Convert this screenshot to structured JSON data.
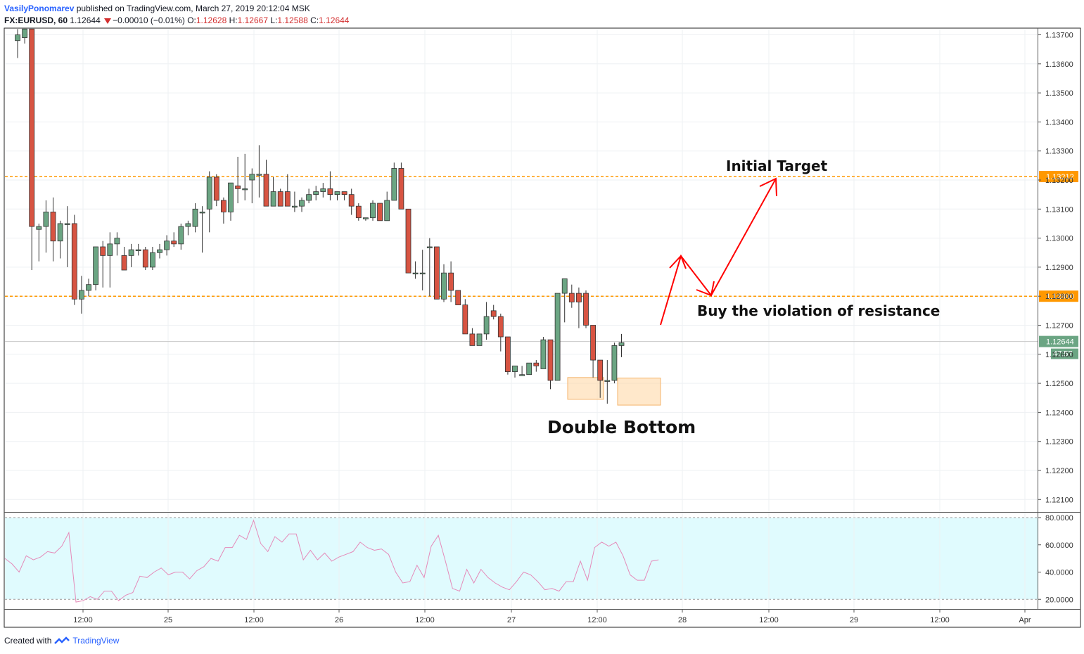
{
  "header": {
    "author": "VasilyPonomarev",
    "published_text": "published on TradingView.com, March 27, 2019 20:12:04 MSK",
    "symbol": "FX:EURUSD, 60",
    "last": "1.12644",
    "change": "−0.00010 (−0.01%)",
    "o_label": "O:",
    "o_value": "1.12628",
    "h_label": "H:",
    "h_value": "1.12667",
    "l_label": "L:",
    "l_value": "1.12588",
    "c_label": "C:",
    "c_value": "1.12644"
  },
  "footer": {
    "created_with": "Created with",
    "brand": "TradingView"
  },
  "colors": {
    "up": "#6ba583",
    "down": "#d75442",
    "orange": "#ff9800",
    "red_arrow": "#ff0000",
    "rsi_line": "#e58ab9",
    "rsi_band": "#e0fbfe"
  },
  "chart_data": [
    {
      "type": "candlestick",
      "symbol": "FX:EURUSD",
      "interval": "60",
      "y_ticks": [
        "1.13700",
        "1.13600",
        "1.13500",
        "1.13400",
        "1.13300",
        "1.13200",
        "1.13100",
        "1.13000",
        "1.12900",
        "1.12800",
        "1.12700",
        "1.12600",
        "1.12500",
        "1.12400",
        "1.12300",
        "1.12200",
        "1.12100"
      ],
      "ylim": [
        1.1207,
        1.1375
      ],
      "x_ticks": [
        "12:00",
        "25",
        "12:00",
        "26",
        "12:00",
        "27",
        "12:00",
        "28",
        "12:00",
        "29",
        "12:00",
        "Apr"
      ],
      "price_labels": {
        "initial_target": "1.13212",
        "resistance": "1.12800",
        "last_price": "1.12644",
        "countdown": "47:57"
      },
      "horizontal_lines": [
        1.13212,
        1.128
      ],
      "annotations": {
        "initial_target": "Initial Target",
        "buy_text": "Buy the violation of resistance",
        "pattern": "Double Bottom"
      },
      "candles": [
        [
          1.1368,
          1.1372,
          1.1362,
          1.137
        ],
        [
          1.1369,
          1.1374,
          1.1367,
          1.1372
        ],
        [
          1.1372,
          1.1375,
          1.1289,
          1.1304
        ],
        [
          1.1303,
          1.1305,
          1.1292,
          1.1304
        ],
        [
          1.1304,
          1.1313,
          1.1295,
          1.1309
        ],
        [
          1.1309,
          1.1314,
          1.1292,
          1.1299
        ],
        [
          1.1299,
          1.1306,
          1.1293,
          1.1305
        ],
        [
          1.1305,
          1.1311,
          1.129,
          1.1305
        ],
        [
          1.1305,
          1.1308,
          1.1277,
          1.1279
        ],
        [
          1.1279,
          1.1287,
          1.1274,
          1.1282
        ],
        [
          1.1282,
          1.1286,
          1.128,
          1.1284
        ],
        [
          1.1284,
          1.1297,
          1.1282,
          1.1297
        ],
        [
          1.1297,
          1.1299,
          1.1283,
          1.1294
        ],
        [
          1.1294,
          1.1302,
          1.1283,
          1.1298
        ],
        [
          1.1298,
          1.1302,
          1.1294,
          1.13
        ],
        [
          1.1294,
          1.1297,
          1.1289,
          1.1289
        ],
        [
          1.1294,
          1.1298,
          1.129,
          1.1296
        ],
        [
          1.1296,
          1.1298,
          1.1294,
          1.1296
        ],
        [
          1.1296,
          1.1297,
          1.1289,
          1.129
        ],
        [
          1.129,
          1.1297,
          1.1289,
          1.1295
        ],
        [
          1.1295,
          1.1298,
          1.1293,
          1.1296
        ],
        [
          1.1296,
          1.1301,
          1.1294,
          1.1299
        ],
        [
          1.1299,
          1.1302,
          1.1297,
          1.1298
        ],
        [
          1.1298,
          1.1305,
          1.1296,
          1.1304
        ],
        [
          1.1304,
          1.1306,
          1.1301,
          1.1305
        ],
        [
          1.1304,
          1.1312,
          1.1302,
          1.131
        ],
        [
          1.1309,
          1.1311,
          1.1295,
          1.1309
        ],
        [
          1.131,
          1.1323,
          1.1302,
          1.1321
        ],
        [
          1.1321,
          1.1322,
          1.1311,
          1.1313
        ],
        [
          1.1313,
          1.1314,
          1.1305,
          1.1309
        ],
        [
          1.1309,
          1.1319,
          1.1306,
          1.1319
        ],
        [
          1.1318,
          1.1328,
          1.1312,
          1.1317
        ],
        [
          1.1317,
          1.1329,
          1.1313,
          1.1317
        ],
        [
          1.132,
          1.1324,
          1.1312,
          1.1322
        ],
        [
          1.1322,
          1.1332,
          1.1314,
          1.1322
        ],
        [
          1.1322,
          1.1327,
          1.1311,
          1.1311
        ],
        [
          1.1311,
          1.1321,
          1.1311,
          1.1316
        ],
        [
          1.1316,
          1.1317,
          1.1311,
          1.1311
        ],
        [
          1.1316,
          1.1322,
          1.1311,
          1.1311
        ],
        [
          1.1311,
          1.1316,
          1.1309,
          1.1311
        ],
        [
          1.1311,
          1.1314,
          1.1309,
          1.1313
        ],
        [
          1.1313,
          1.1317,
          1.1312,
          1.1315
        ],
        [
          1.1315,
          1.1318,
          1.1313,
          1.1316
        ],
        [
          1.1316,
          1.1319,
          1.1314,
          1.1317
        ],
        [
          1.1317,
          1.1323,
          1.1313,
          1.1315
        ],
        [
          1.1315,
          1.1316,
          1.1313,
          1.1316
        ],
        [
          1.1316,
          1.1316,
          1.1313,
          1.1315
        ],
        [
          1.1315,
          1.1317,
          1.1308,
          1.1311
        ],
        [
          1.1311,
          1.1312,
          1.1306,
          1.1307
        ],
        [
          1.1307,
          1.1307,
          1.1306,
          1.1307
        ],
        [
          1.1307,
          1.1313,
          1.1306,
          1.1312
        ],
        [
          1.1312,
          1.1312,
          1.1306,
          1.1306
        ],
        [
          1.1306,
          1.1316,
          1.1306,
          1.1313
        ],
        [
          1.1313,
          1.1326,
          1.1313,
          1.1324
        ],
        [
          1.1324,
          1.1326,
          1.1311,
          1.131
        ],
        [
          1.131,
          1.131,
          1.1288,
          1.1288
        ],
        [
          1.1288,
          1.1292,
          1.1286,
          1.1288
        ],
        [
          1.1288,
          1.1296,
          1.1282,
          1.1288
        ],
        [
          1.1297,
          1.13,
          1.128,
          1.1297
        ],
        [
          1.1297,
          1.1297,
          1.1279,
          1.1279
        ],
        [
          1.1279,
          1.1291,
          1.1278,
          1.1288
        ],
        [
          1.1288,
          1.1292,
          1.1278,
          1.1282
        ],
        [
          1.1282,
          1.1281,
          1.1277,
          1.1277
        ],
        [
          1.1277,
          1.1279,
          1.1267,
          1.1267
        ],
        [
          1.1267,
          1.1269,
          1.1263,
          1.1263
        ],
        [
          1.1263,
          1.1267,
          1.1263,
          1.1267
        ],
        [
          1.1267,
          1.1278,
          1.1265,
          1.1273
        ],
        [
          1.1275,
          1.1277,
          1.1272,
          1.1273
        ],
        [
          1.1273,
          1.1274,
          1.1261,
          1.1266
        ],
        [
          1.1266,
          1.1266,
          1.1253,
          1.1254
        ],
        [
          1.1254,
          1.1256,
          1.1252,
          1.1256
        ],
        [
          1.1253,
          1.1256,
          1.1253,
          1.1253
        ],
        [
          1.1253,
          1.1257,
          1.1253,
          1.1257
        ],
        [
          1.1257,
          1.1258,
          1.1254,
          1.1256
        ],
        [
          1.1255,
          1.1266,
          1.1256,
          1.1265
        ],
        [
          1.1265,
          1.1265,
          1.1248,
          1.1251
        ],
        [
          1.1251,
          1.1281,
          1.1251,
          1.1281
        ],
        [
          1.1281,
          1.1285,
          1.1271,
          1.1286
        ],
        [
          1.1281,
          1.1284,
          1.1276,
          1.1278
        ],
        [
          1.1281,
          1.1283,
          1.1269,
          1.1278
        ],
        [
          1.1281,
          1.1282,
          1.1269,
          1.127
        ],
        [
          1.127,
          1.127,
          1.1252,
          1.1258
        ],
        [
          1.1258,
          1.1258,
          1.1245,
          1.1251
        ],
        [
          1.1251,
          1.1258,
          1.1243,
          1.1251
        ],
        [
          1.1251,
          1.1264,
          1.125,
          1.1263
        ],
        [
          1.1263,
          1.1267,
          1.1259,
          1.1264
        ]
      ]
    },
    {
      "type": "line",
      "name": "RSI",
      "y_ticks": [
        "80.0000",
        "60.0000",
        "40.0000",
        "20.0000"
      ],
      "ylim": [
        15,
        82
      ],
      "band": [
        20,
        80
      ],
      "values": [
        50,
        46,
        40,
        52,
        49,
        51,
        55,
        54,
        59,
        69,
        18,
        19,
        22,
        20,
        26,
        26,
        19,
        23,
        25,
        37,
        36,
        40,
        43,
        38,
        40,
        40,
        35,
        41,
        44,
        50,
        48,
        58,
        58,
        67,
        64,
        78,
        61,
        55,
        66,
        62,
        68,
        68,
        49,
        56,
        49,
        54,
        48,
        51,
        53,
        55,
        62,
        58,
        56,
        57,
        53,
        40,
        32,
        33,
        45,
        36,
        59,
        67,
        48,
        28,
        26,
        42,
        32,
        42,
        36,
        32,
        29,
        27,
        33,
        40,
        38,
        33,
        27,
        28,
        26,
        33,
        33,
        48,
        34,
        58,
        62,
        59,
        62,
        52,
        38,
        34,
        34,
        48,
        49
      ]
    }
  ]
}
